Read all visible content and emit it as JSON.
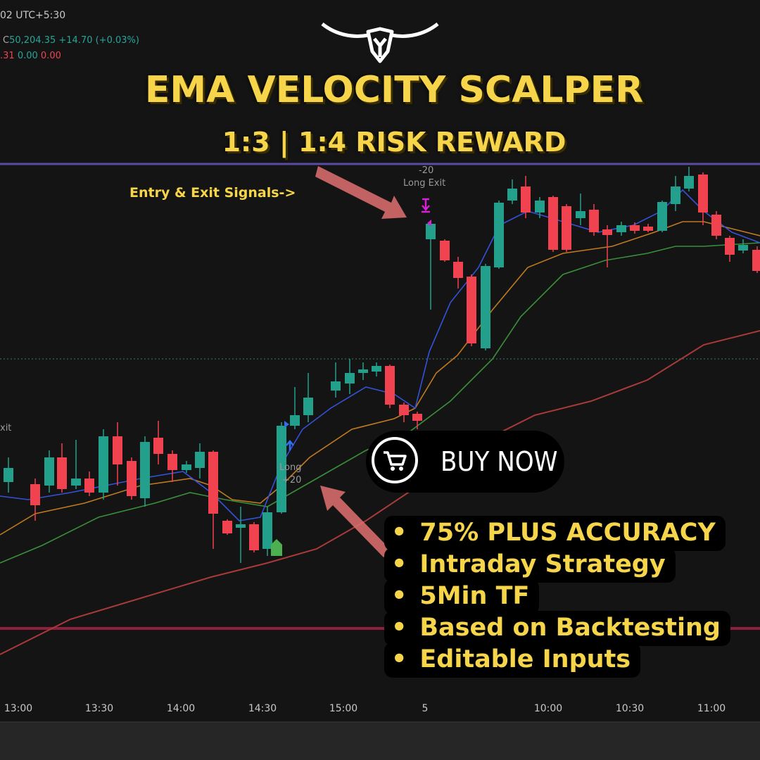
{
  "header": {
    "timestamp": "02 UTC+5:30",
    "close_label": "C",
    "close": "50,204.35 +14.70 (+0.03%)",
    "indicator_a": ".31",
    "indicator_b": "0.00",
    "indicator_c": "0.00"
  },
  "title": "EMA VELOCITY SCALPER",
  "subtitle": "1:3 | 1:4 RISK REWARD",
  "annotations": {
    "signals": "Entry & Exit Signals->",
    "exit_qty": "-20",
    "exit_label": "Long Exit",
    "left_exit": "xit",
    "entry_label": "Long",
    "entry_qty": "+20"
  },
  "button": {
    "label": "BUY NOW"
  },
  "features": [
    "75% PLUS ACCURACY",
    "Intraday Strategy",
    "5Min TF",
    "Based on Backtesting",
    "Editable Inputs"
  ],
  "x_axis": [
    "13:00",
    "13:30",
    "14:00",
    "14:30",
    "15:00",
    "5",
    "10:00",
    "10:30",
    "11:00"
  ]
}
